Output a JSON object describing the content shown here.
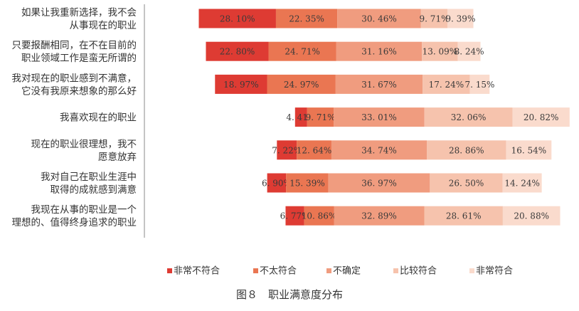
{
  "chart_data": {
    "type": "bar",
    "orientation": "horizontal",
    "stacked": true,
    "diverging": true,
    "categories": [
      [
        "如果让我重新选择，我不会",
        "从事现在的职业"
      ],
      [
        "只要报酬相同，在不在目前的",
        "职业领域工作是蛮无所谓的"
      ],
      [
        "我对现在的职业感到不满意，",
        "它没有我原来想象的那么好"
      ],
      [
        "我喜欢现在的职业"
      ],
      [
        "现在的职业很理想，我不",
        "愿意放弃"
      ],
      [
        "我对自己在职业生涯中",
        "取得的成就感到满意"
      ],
      [
        "我现在从事的职业是一个",
        "理想的、值得终身追求的职业"
      ]
    ],
    "series": [
      {
        "name": "非常不符合",
        "color": "#de3b33",
        "values": [
          28.1,
          22.8,
          18.97,
          4.41,
          7.22,
          6.9,
          6.77
        ]
      },
      {
        "name": "不太符合",
        "color": "#ea7652",
        "values": [
          22.35,
          24.71,
          24.97,
          9.71,
          12.64,
          15.39,
          10.86
        ]
      },
      {
        "name": "不确定",
        "color": "#f09c7f",
        "values": [
          30.46,
          31.16,
          31.67,
          33.01,
          34.74,
          36.97,
          32.89
        ]
      },
      {
        "name": "比较符合",
        "color": "#f6c3ad",
        "values": [
          9.71,
          13.09,
          17.24,
          32.06,
          28.86,
          26.5,
          28.61
        ]
      },
      {
        "name": "非常符合",
        "color": "#fadbcd",
        "values": [
          9.39,
          8.24,
          7.15,
          20.82,
          16.54,
          14.24,
          20.88
        ]
      }
    ],
    "labels": [
      [
        "28. 10%",
        "22. 35%",
        "30. 46%",
        "9. 71%",
        "9. 39%"
      ],
      [
        "22. 80%",
        "24. 71%",
        "31. 16%",
        "13. 09%",
        "8. 24%"
      ],
      [
        "18. 97%",
        "24. 97%",
        "31. 67%",
        "17. 24%",
        "7. 15%"
      ],
      [
        "4. 41%",
        "9. 71%",
        "33. 01%",
        "32. 06%",
        "20. 82%"
      ],
      [
        "7. 22%",
        "12. 64%",
        "34. 74%",
        "28. 86%",
        "16. 54%"
      ],
      [
        "6. 90%",
        "15. 39%",
        "36. 97%",
        "26. 50%",
        "14. 24%"
      ],
      [
        "6. 77%",
        "10. 86%",
        "32. 89%",
        "28. 61%",
        "20. 88%"
      ]
    ],
    "legend_position": "bottom",
    "grid": false
  },
  "caption": "图８　职业满意度分布"
}
